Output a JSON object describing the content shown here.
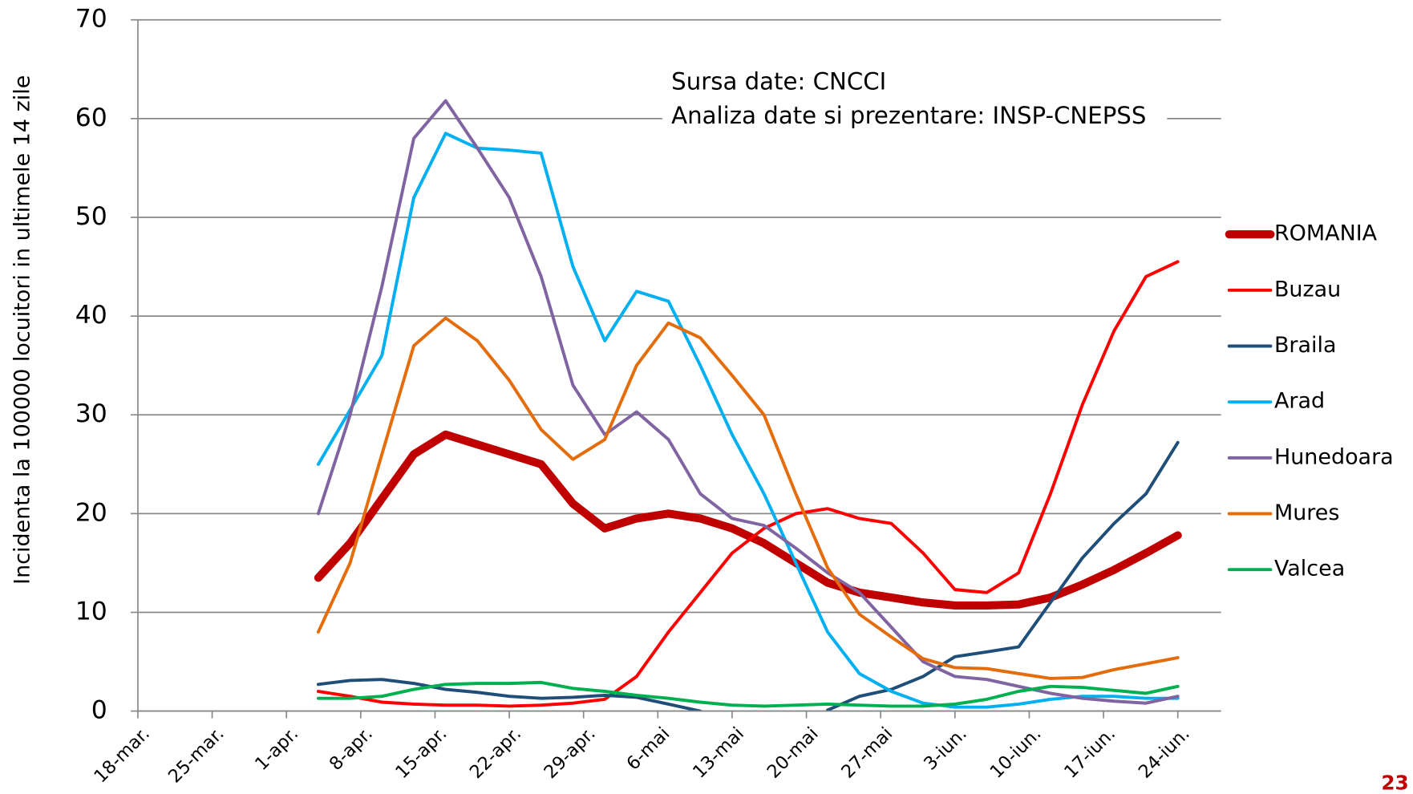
{
  "chart_data": {
    "type": "line",
    "y_label": "Incidenta la 100000 locuitori in ultimele 14 zile",
    "annotations": [
      "Sursa date: CNCCI",
      "Analiza date si prezentare: INSP-CNEPSS"
    ],
    "x": [
      17,
      20,
      23,
      26,
      29,
      32,
      35,
      38,
      41,
      44,
      47,
      50,
      53,
      56,
      59,
      62,
      65,
      68,
      71,
      74,
      77,
      80,
      83,
      86,
      89,
      92,
      95,
      98
    ],
    "xlim": [
      0,
      98
    ],
    "xticks": [
      {
        "value": 0,
        "label": "18-mar."
      },
      {
        "value": 7,
        "label": "25-mar."
      },
      {
        "value": 14,
        "label": "1-apr."
      },
      {
        "value": 21,
        "label": "8-apr."
      },
      {
        "value": 28,
        "label": "15-apr."
      },
      {
        "value": 35,
        "label": "22-apr."
      },
      {
        "value": 42,
        "label": "29-apr."
      },
      {
        "value": 49,
        "label": "6-mai"
      },
      {
        "value": 56,
        "label": "13-mai"
      },
      {
        "value": 63,
        "label": "20-mai"
      },
      {
        "value": 70,
        "label": "27-mai"
      },
      {
        "value": 77,
        "label": "3-iun."
      },
      {
        "value": 84,
        "label": "10-iun."
      },
      {
        "value": 91,
        "label": "17-iun."
      },
      {
        "value": 98,
        "label": "24-iun."
      }
    ],
    "ylim": [
      0,
      70
    ],
    "yticks": [
      0,
      10,
      20,
      30,
      40,
      50,
      60,
      70
    ],
    "grid": true,
    "legend": "right",
    "series": [
      {
        "name": "ROMANIA",
        "color": "#c00000",
        "width": 9,
        "values": [
          13.5,
          17,
          21.5,
          26,
          28,
          27,
          26,
          25,
          21,
          18.5,
          19.5,
          20,
          19.5,
          18.5,
          17,
          15,
          13,
          12,
          11.5,
          11,
          10.7,
          10.7,
          10.8,
          11.5,
          12.8,
          14.3,
          16,
          17.8
        ]
      },
      {
        "name": "Buzau",
        "color": "#ff0000",
        "width": 3.5,
        "values": [
          2,
          1.5,
          0.9,
          0.7,
          0.6,
          0.6,
          0.5,
          0.6,
          0.8,
          1.2,
          3.5,
          8,
          12,
          16,
          18.5,
          20,
          20.5,
          19.5,
          19,
          16,
          12.3,
          12,
          14,
          22,
          31,
          38.5,
          44,
          45.5
        ]
      },
      {
        "name": "Braila",
        "color": "#1f4e79",
        "width": 3.5,
        "values": [
          2.7,
          3.1,
          3.2,
          2.8,
          2.2,
          1.9,
          1.5,
          1.3,
          1.4,
          1.6,
          1.4,
          0.7,
          0,
          null,
          null,
          null,
          0.1,
          1.5,
          2.2,
          3.5,
          5.5,
          6,
          6.5,
          11,
          15.5,
          19,
          22,
          27.2
        ]
      },
      {
        "name": "Arad",
        "color": "#00b0f0",
        "width": 3.5,
        "values": [
          25,
          30.5,
          36,
          52,
          58.5,
          57,
          56.8,
          56.5,
          45,
          37.5,
          42.5,
          41.5,
          35,
          28,
          22,
          15,
          8,
          3.8,
          2,
          0.8,
          0.4,
          0.4,
          0.7,
          1.2,
          1.5,
          1.5,
          1.3,
          1.3
        ]
      },
      {
        "name": "Hunedoara",
        "color": "#8064a2",
        "width": 3.5,
        "values": [
          20,
          30,
          43,
          58,
          61.8,
          57,
          52,
          44,
          33,
          28,
          30.3,
          27.5,
          22,
          19.5,
          18.8,
          16.5,
          14,
          12,
          8.5,
          5,
          3.5,
          3.2,
          2.5,
          1.8,
          1.3,
          1,
          0.8,
          1.5
        ]
      },
      {
        "name": "Mures",
        "color": "#e46c0a",
        "width": 3.5,
        "values": [
          8,
          15,
          26,
          37,
          39.8,
          37.5,
          33.5,
          28.5,
          25.5,
          27.5,
          35,
          39.3,
          37.8,
          34,
          30,
          22,
          14.5,
          9.8,
          7.5,
          5.3,
          4.4,
          4.3,
          3.8,
          3.3,
          3.4,
          4.2,
          4.8,
          5.4
        ]
      },
      {
        "name": "Valcea",
        "color": "#00b050",
        "width": 3.5,
        "values": [
          1.3,
          1.3,
          1.5,
          2.2,
          2.7,
          2.8,
          2.8,
          2.9,
          2.3,
          2,
          1.6,
          1.3,
          0.9,
          0.6,
          0.5,
          0.6,
          0.7,
          0.6,
          0.5,
          0.5,
          0.7,
          1.2,
          2,
          2.5,
          2.4,
          2.1,
          1.8,
          2.5
        ]
      }
    ]
  },
  "page_number": "23"
}
